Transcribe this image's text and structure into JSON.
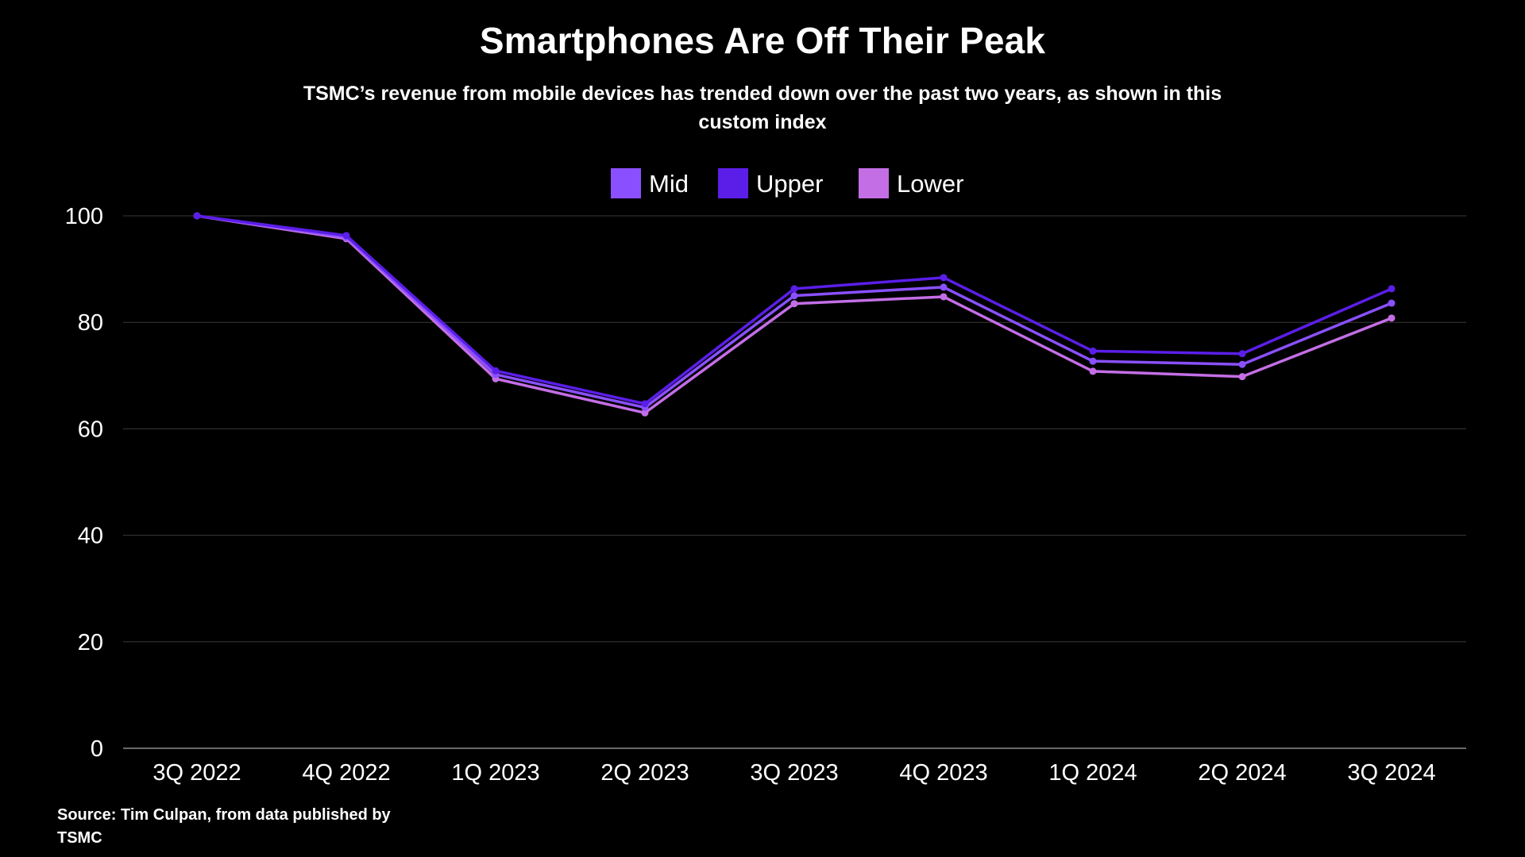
{
  "title": "Smartphones Are Off Their Peak",
  "subtitle": "TSMC’s revenue from mobile devices has trended down over the past two years, as shown in this custom index",
  "source": "Source: Tim Culpan, from data published by TSMC",
  "chart_data": {
    "type": "line",
    "title": "Smartphones Are Off Their Peak",
    "subtitle": "TSMC’s revenue from mobile devices has trended down over the past two years, as shown in this custom index",
    "xlabel": "",
    "ylabel": "",
    "categories": [
      "3Q 2022",
      "4Q 2022",
      "1Q 2023",
      "2Q 2023",
      "3Q 2023",
      "4Q 2023",
      "1Q 2024",
      "2Q 2024",
      "3Q 2024"
    ],
    "ylim": [
      0,
      100
    ],
    "yticks": [
      0,
      20,
      40,
      60,
      80,
      100
    ],
    "grid": true,
    "legend_position": "top-center",
    "series": [
      {
        "name": "Mid",
        "color": "#8a50ff",
        "values": [
          100,
          96.0,
          70.2,
          64.0,
          85.0,
          86.6,
          72.7,
          72.1,
          83.6
        ]
      },
      {
        "name": "Upper",
        "color": "#5b1ee8",
        "values": [
          100,
          96.3,
          70.9,
          64.7,
          86.3,
          88.4,
          74.6,
          74.1,
          86.3
        ]
      },
      {
        "name": "Lower",
        "color": "#c46ee6",
        "values": [
          100,
          95.7,
          69.4,
          63.0,
          83.5,
          84.8,
          70.8,
          69.8,
          80.8
        ]
      }
    ]
  }
}
